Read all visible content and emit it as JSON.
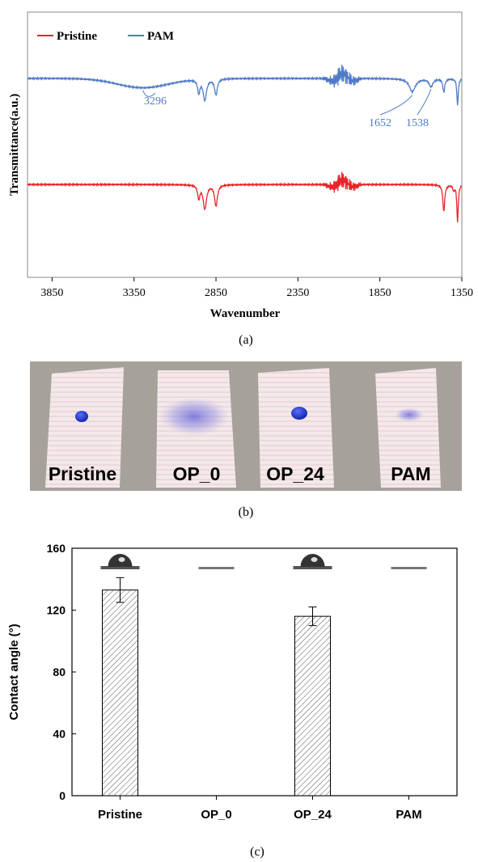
{
  "panels": {
    "a": {
      "caption": "(a)"
    },
    "b": {
      "caption": "(b)"
    },
    "c": {
      "caption": "(c)"
    }
  },
  "chart_data": [
    {
      "type": "line",
      "panel": "a",
      "title": "",
      "xlabel": "Wavenumber",
      "ylabel": "Transmittance(a.u.)",
      "xlim": [
        4000,
        1350
      ],
      "x_reversed": true,
      "x_ticks": [
        "3850",
        "3350",
        "2850",
        "2350",
        "1850",
        "1350"
      ],
      "legend": {
        "placement": "top-left"
      },
      "series": [
        {
          "name": "Pristine",
          "color": "#e8252a",
          "baseline": 0.35
        },
        {
          "name": "PAM",
          "color": "#4f7cc7",
          "baseline": 0.75
        }
      ],
      "annotations": [
        {
          "text": "3296",
          "x": 3296
        },
        {
          "text": "1652",
          "x": 1652
        },
        {
          "text": "1538",
          "x": 1538
        }
      ]
    },
    {
      "type": "photo",
      "panel": "b",
      "samples": [
        "Pristine",
        "OP_0",
        "OP_24",
        "PAM"
      ]
    },
    {
      "type": "bar",
      "panel": "c",
      "title": "",
      "xlabel": "",
      "ylabel": "Contact angle (°)",
      "ylim": [
        0,
        160
      ],
      "y_ticks": [
        "0",
        "40",
        "80",
        "120",
        "160"
      ],
      "categories": [
        "Pristine",
        "OP_0",
        "OP_24",
        "PAM"
      ],
      "values": [
        133,
        0,
        116,
        0
      ],
      "errors": [
        8,
        0,
        6,
        0
      ],
      "droplet_shape": [
        "bead",
        "flat",
        "bead",
        "flat"
      ]
    }
  ]
}
